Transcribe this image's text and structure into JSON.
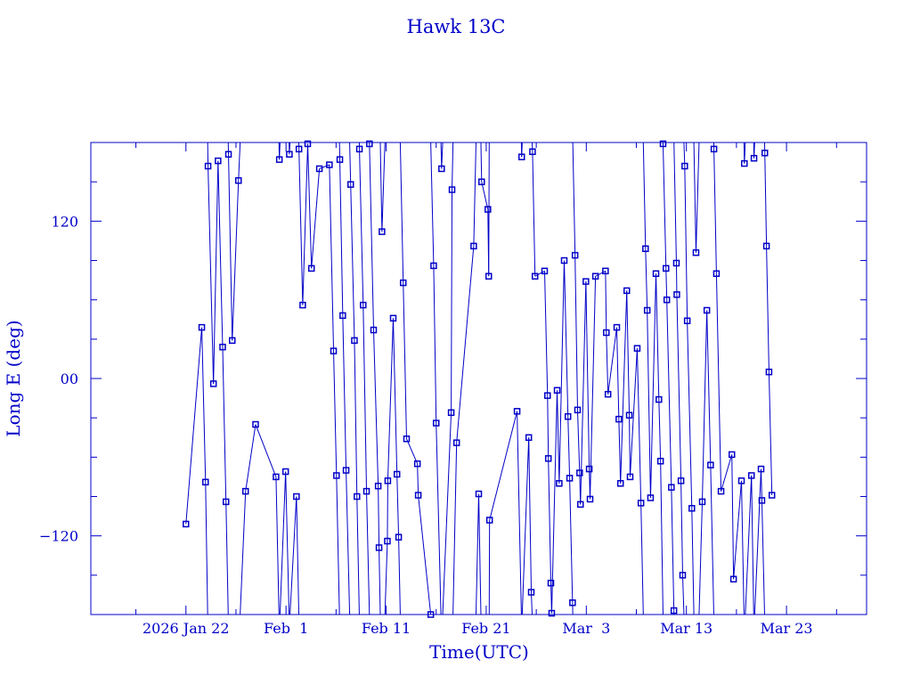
{
  "chart_data": {
    "type": "line",
    "title": "Hawk 13C",
    "xlabel": "Time(UTC)",
    "ylabel": "Long E (deg)",
    "xlim": [
      "2026-01-12T12:00",
      "2026-03-31T00:00"
    ],
    "ylim": [
      -180,
      180
    ],
    "x_ticks": [
      {
        "date": "2026-01-22",
        "label": "2026 Jan 22"
      },
      {
        "date": "2026-02-01",
        "label": "Feb  1"
      },
      {
        "date": "2026-02-11",
        "label": "Feb 11"
      },
      {
        "date": "2026-02-21",
        "label": "Feb 21"
      },
      {
        "date": "2026-03-03",
        "label": "Mar  3"
      },
      {
        "date": "2026-03-13",
        "label": "Mar 13"
      },
      {
        "date": "2026-03-23",
        "label": "Mar 23"
      }
    ],
    "y_ticks": [
      {
        "value": 120,
        "label": "120"
      },
      {
        "value": 0,
        "label": "00"
      },
      {
        "value": -120,
        "label": "−120"
      }
    ],
    "grid": false,
    "longitude_wraps": true,
    "color": "#0000c8",
    "marker": "square",
    "series": [
      {
        "points": [
          [
            "2026-01-22T00:00",
            -111
          ],
          [
            "2026-01-23T14:00",
            39
          ],
          [
            "2026-01-23T23:00",
            -79
          ],
          [
            "2026-01-24T05:00",
            162
          ],
          [
            "2026-01-24T18:00",
            -4
          ],
          [
            "2026-01-25T05:00",
            166
          ],
          [
            "2026-01-25T16:00",
            24
          ],
          [
            "2026-01-26T00:00",
            -94
          ],
          [
            "2026-01-26T06:00",
            171
          ],
          [
            "2026-01-26T15:00",
            29
          ],
          [
            "2026-01-27T06:00",
            151
          ],
          [
            "2026-01-27T23:00",
            -86
          ],
          [
            "2026-01-28T23:00",
            -35
          ],
          [
            "2026-01-31T00:00",
            -75
          ],
          [
            "2026-01-31T08:00",
            167
          ],
          [
            "2026-01-31T23:00",
            -71
          ],
          [
            "2026-02-01T08:00",
            171
          ],
          [
            "2026-02-02T01:00",
            -90
          ],
          [
            "2026-02-02T07:00",
            175
          ],
          [
            "2026-02-02T16:00",
            56
          ],
          [
            "2026-02-03T04:00",
            179
          ],
          [
            "2026-02-03T13:00",
            84
          ],
          [
            "2026-02-04T08:00",
            160
          ],
          [
            "2026-02-05T08:00",
            163
          ],
          [
            "2026-02-05T18:00",
            21
          ],
          [
            "2026-02-06T01:00",
            -74
          ],
          [
            "2026-02-06T09:00",
            167
          ],
          [
            "2026-02-06T16:00",
            48
          ],
          [
            "2026-02-07T00:00",
            -70
          ],
          [
            "2026-02-07T11:00",
            148
          ],
          [
            "2026-02-07T20:00",
            29
          ],
          [
            "2026-02-08T02:00",
            -90
          ],
          [
            "2026-02-08T08:00",
            175
          ],
          [
            "2026-02-08T17:00",
            56
          ],
          [
            "2026-02-09T01:00",
            -86
          ],
          [
            "2026-02-09T08:00",
            179
          ],
          [
            "2026-02-09T18:00",
            37
          ],
          [
            "2026-02-10T05:00",
            -82
          ],
          [
            "2026-02-10T07:00",
            -129
          ],
          [
            "2026-02-10T14:00",
            112
          ],
          [
            "2026-02-11T03:00",
            -124
          ],
          [
            "2026-02-11T04:00",
            -78
          ],
          [
            "2026-02-11T17:00",
            46
          ],
          [
            "2026-02-12T02:00",
            -73
          ],
          [
            "2026-02-12T06:00",
            -121
          ],
          [
            "2026-02-12T17:00",
            73
          ],
          [
            "2026-02-13T01:00",
            -46
          ],
          [
            "2026-02-14T03:00",
            -65
          ],
          [
            "2026-02-14T05:00",
            -89
          ],
          [
            "2026-02-15T11:00",
            -180
          ],
          [
            "2026-02-15T18:00",
            86
          ],
          [
            "2026-02-16T00:00",
            -34
          ],
          [
            "2026-02-16T13:00",
            160
          ],
          [
            "2026-02-17T12:00",
            -26
          ],
          [
            "2026-02-17T14:00",
            144
          ],
          [
            "2026-02-18T01:00",
            -49
          ],
          [
            "2026-02-19T18:00",
            101
          ],
          [
            "2026-02-20T06:00",
            -88
          ],
          [
            "2026-02-20T13:00",
            150
          ],
          [
            "2026-02-21T04:00",
            129
          ],
          [
            "2026-02-21T06:00",
            78
          ],
          [
            "2026-02-21T08:00",
            -108
          ],
          [
            "2026-02-24T02:00",
            -25
          ],
          [
            "2026-02-24T13:00",
            169
          ],
          [
            "2026-02-25T06:00",
            -45
          ],
          [
            "2026-02-25T12:00",
            -163
          ],
          [
            "2026-02-25T15:00",
            173
          ],
          [
            "2026-02-25T21:00",
            78
          ],
          [
            "2026-02-26T20:00",
            82
          ],
          [
            "2026-02-27T03:00",
            -13
          ],
          [
            "2026-02-27T05:00",
            -61
          ],
          [
            "2026-02-27T11:00",
            -156
          ],
          [
            "2026-02-27T13:00",
            -179
          ],
          [
            "2026-02-28T02:00",
            -9
          ],
          [
            "2026-02-28T07:00",
            -80
          ],
          [
            "2026-02-28T19:00",
            90
          ],
          [
            "2026-03-01T04:00",
            -29
          ],
          [
            "2026-03-01T08:00",
            -76
          ],
          [
            "2026-03-01T15:00",
            -171
          ],
          [
            "2026-03-01T21:00",
            94
          ],
          [
            "2026-03-02T03:00",
            -24
          ],
          [
            "2026-03-02T08:00",
            -72
          ],
          [
            "2026-03-02T10:00",
            -96
          ],
          [
            "2026-03-02T23:00",
            74
          ],
          [
            "2026-03-03T07:00",
            -69
          ],
          [
            "2026-03-03T09:00",
            -92
          ],
          [
            "2026-03-03T22:00",
            78
          ],
          [
            "2026-03-04T22:00",
            82
          ],
          [
            "2026-03-05T00:00",
            35
          ],
          [
            "2026-03-05T04:00",
            -12
          ],
          [
            "2026-03-06T01:00",
            39
          ],
          [
            "2026-03-06T06:00",
            -31
          ],
          [
            "2026-03-06T10:00",
            -80
          ],
          [
            "2026-03-07T01:00",
            67
          ],
          [
            "2026-03-07T07:00",
            -28
          ],
          [
            "2026-03-07T09:00",
            -75
          ],
          [
            "2026-03-08T02:00",
            23
          ],
          [
            "2026-03-08T11:00",
            -95
          ],
          [
            "2026-03-08T22:00",
            99
          ],
          [
            "2026-03-09T02:00",
            52
          ],
          [
            "2026-03-09T10:00",
            -91
          ],
          [
            "2026-03-09T23:00",
            80
          ],
          [
            "2026-03-10T06:00",
            -16
          ],
          [
            "2026-03-10T10:00",
            -63
          ],
          [
            "2026-03-10T16:00",
            179
          ],
          [
            "2026-03-10T23:00",
            84
          ],
          [
            "2026-03-11T01:00",
            60
          ],
          [
            "2026-03-11T12:00",
            -83
          ],
          [
            "2026-03-11T18:00",
            -177
          ],
          [
            "2026-03-12T00:00",
            88
          ],
          [
            "2026-03-12T01:00",
            64
          ],
          [
            "2026-03-12T11:00",
            -78
          ],
          [
            "2026-03-12T15:00",
            -150
          ],
          [
            "2026-03-12T20:00",
            162
          ],
          [
            "2026-03-13T02:00",
            44
          ],
          [
            "2026-03-13T13:00",
            -99
          ],
          [
            "2026-03-13T23:00",
            96
          ],
          [
            "2026-03-14T14:00",
            -94
          ],
          [
            "2026-03-15T01:00",
            52
          ],
          [
            "2026-03-15T10:00",
            -66
          ],
          [
            "2026-03-15T18:00",
            175
          ],
          [
            "2026-03-16T00:00",
            80
          ],
          [
            "2026-03-16T11:00",
            -86
          ],
          [
            "2026-03-17T13:00",
            -58
          ],
          [
            "2026-03-17T17:00",
            -153
          ],
          [
            "2026-03-18T12:00",
            -78
          ],
          [
            "2026-03-18T19:00",
            164
          ],
          [
            "2026-03-19T12:00",
            -74
          ],
          [
            "2026-03-19T18:00",
            168
          ],
          [
            "2026-03-20T11:00",
            -69
          ],
          [
            "2026-03-20T13:00",
            -93
          ],
          [
            "2026-03-20T20:00",
            172
          ],
          [
            "2026-03-21T00:00",
            101
          ],
          [
            "2026-03-21T06:00",
            5
          ],
          [
            "2026-03-21T13:00",
            -89
          ]
        ]
      }
    ]
  }
}
